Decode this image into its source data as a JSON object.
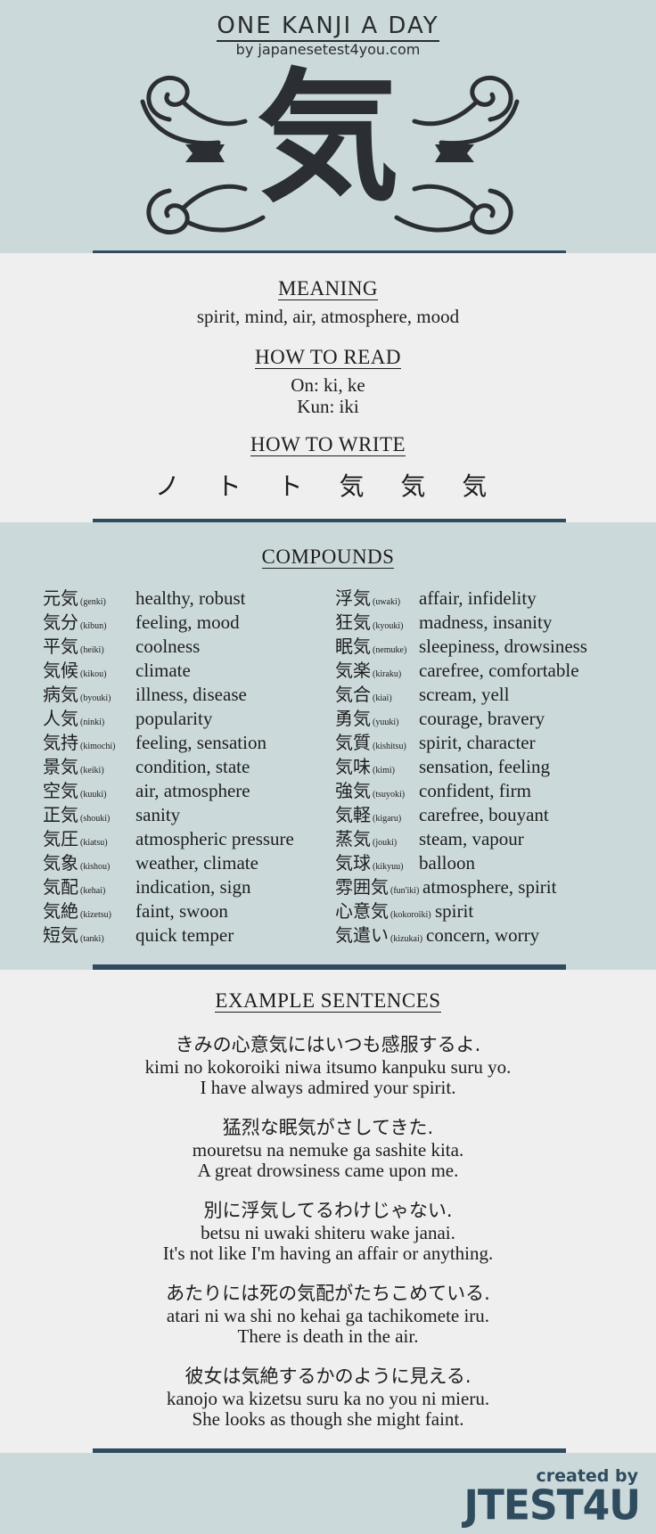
{
  "header": {
    "title": "ONE KANJI A DAY",
    "subtitle": "by japanesetest4you.com",
    "kanji": "気"
  },
  "info": {
    "meaning_heading": "MEANING",
    "meaning": "spirit, mind, air, atmosphere, mood",
    "read_heading": "HOW TO READ",
    "on": "On: ki, ke",
    "kun": "Kun: iki",
    "write_heading": "HOW TO WRITE",
    "strokes": [
      "ノ",
      "ト",
      "ト",
      "気",
      "気",
      "気"
    ]
  },
  "compounds": {
    "heading": "COMPOUNDS",
    "left": [
      {
        "kanji": "元気",
        "romaji": "(genki)",
        "meaning": "healthy, robust"
      },
      {
        "kanji": "気分",
        "romaji": "(kibun)",
        "meaning": "feeling, mood"
      },
      {
        "kanji": "平気",
        "romaji": "(heiki)",
        "meaning": "coolness"
      },
      {
        "kanji": "気候",
        "romaji": "(kikou)",
        "meaning": "climate"
      },
      {
        "kanji": "病気",
        "romaji": "(byouki)",
        "meaning": "illness, disease"
      },
      {
        "kanji": "人気",
        "romaji": "(ninki)",
        "meaning": "popularity"
      },
      {
        "kanji": "気持",
        "romaji": "(kimochi)",
        "meaning": "feeling, sensation"
      },
      {
        "kanji": "景気",
        "romaji": "(keiki)",
        "meaning": "condition, state"
      },
      {
        "kanji": "空気",
        "romaji": "(kuuki)",
        "meaning": "air, atmosphere"
      },
      {
        "kanji": "正気",
        "romaji": "(shouki)",
        "meaning": "sanity"
      },
      {
        "kanji": "気圧",
        "romaji": "(kiatsu)",
        "meaning": "atmospheric pressure"
      },
      {
        "kanji": "気象",
        "romaji": "(kishou)",
        "meaning": "weather, climate"
      },
      {
        "kanji": "気配",
        "romaji": "(kehai)",
        "meaning": "indication, sign"
      },
      {
        "kanji": "気絶",
        "romaji": "(kizetsu)",
        "meaning": "faint, swoon"
      },
      {
        "kanji": "短気",
        "romaji": "(tanki)",
        "meaning": "quick temper"
      }
    ],
    "right": [
      {
        "kanji": "浮気",
        "romaji": "(uwaki)",
        "meaning": "affair, infidelity"
      },
      {
        "kanji": "狂気",
        "romaji": "(kyouki)",
        "meaning": "madness, insanity"
      },
      {
        "kanji": "眠気",
        "romaji": "(nemuke)",
        "meaning": "sleepiness, drowsiness"
      },
      {
        "kanji": "気楽",
        "romaji": "(kiraku)",
        "meaning": "carefree, comfortable"
      },
      {
        "kanji": "気合",
        "romaji": "(kiai)",
        "meaning": "scream, yell"
      },
      {
        "kanji": "勇気",
        "romaji": "(yuuki)",
        "meaning": "courage, bravery"
      },
      {
        "kanji": "気質",
        "romaji": "(kishitsu)",
        "meaning": "spirit, character"
      },
      {
        "kanji": "気味",
        "romaji": "(kimi)",
        "meaning": "sensation, feeling"
      },
      {
        "kanji": "強気",
        "romaji": "(tsuyoki)",
        "meaning": "confident, firm"
      },
      {
        "kanji": "気軽",
        "romaji": "(kigaru)",
        "meaning": "carefree, bouyant"
      },
      {
        "kanji": "蒸気",
        "romaji": "(jouki)",
        "meaning": "steam, vapour"
      },
      {
        "kanji": "気球",
        "romaji": "(kikyuu)",
        "meaning": "balloon"
      },
      {
        "kanji": "雰囲気",
        "romaji": "(fun'iki)",
        "meaning": "atmosphere, spirit"
      },
      {
        "kanji": "心意気",
        "romaji": "(kokoroiki)",
        "meaning": "spirit"
      },
      {
        "kanji": "気遣い",
        "romaji": "(kizukai)",
        "meaning": "concern, worry"
      }
    ]
  },
  "examples": {
    "heading": "EXAMPLE SENTENCES",
    "items": [
      {
        "jp": "きみの心意気にはいつも感服するよ.",
        "romaji": "kimi no kokoroiki niwa itsumo kanpuku suru yo.",
        "en": "I have always admired your spirit."
      },
      {
        "jp": "猛烈な眠気がさしてきた.",
        "romaji": "mouretsu na nemuke ga sashite kita.",
        "en": "A great drowsiness came upon me."
      },
      {
        "jp": "別に浮気してるわけじゃない.",
        "romaji": "betsu ni uwaki shiteru wake janai.",
        "en": "It's not like I'm having an affair or anything."
      },
      {
        "jp": "あたりには死の気配がたちこめている.",
        "romaji": "atari ni wa shi no kehai ga tachikomete iru.",
        "en": "There is death in the air."
      },
      {
        "jp": "彼女は気絶するかのように見える.",
        "romaji": "kanojo wa kizetsu suru ka no you ni mieru.",
        "en": "She looks as though she might faint."
      }
    ]
  },
  "footer": {
    "created_by": "created by",
    "logo": "JTEST4U"
  },
  "colors": {
    "band_blue": "#ccd9db",
    "band_grey": "#efefef",
    "divider": "#2f4b5e",
    "text": "#1e1e1e"
  }
}
